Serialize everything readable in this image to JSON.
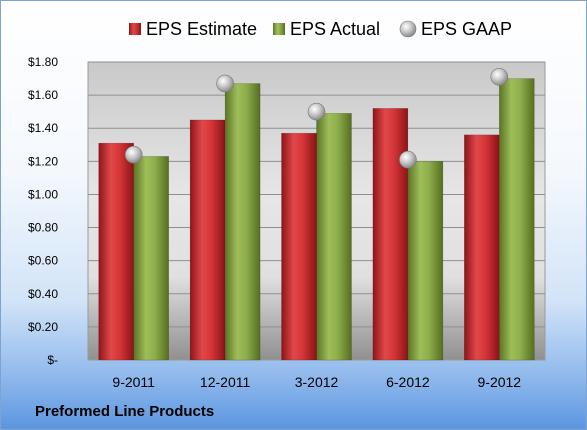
{
  "company": "Preformed Line Products",
  "chart_data": {
    "type": "bar",
    "categories": [
      "9-2011",
      "12-2011",
      "3-2012",
      "6-2012",
      "9-2012"
    ],
    "series": [
      {
        "name": "EPS Estimate",
        "type": "bar",
        "color": "#c0282c",
        "values": [
          1.31,
          1.45,
          1.37,
          1.52,
          1.36
        ]
      },
      {
        "name": "EPS Actual",
        "type": "bar",
        "color": "#7e9a3a",
        "values": [
          1.23,
          1.67,
          1.49,
          1.2,
          1.7
        ]
      },
      {
        "name": "EPS GAAP",
        "type": "scatter",
        "color": "#b8b8b8",
        "values": [
          1.24,
          1.67,
          1.5,
          1.21,
          1.71
        ]
      }
    ],
    "ylim": [
      0,
      1.8
    ],
    "yticks": [
      {
        "value": 0,
        "label": "$-"
      },
      {
        "value": 0.2,
        "label": "$0.20"
      },
      {
        "value": 0.4,
        "label": "$0.40"
      },
      {
        "value": 0.6,
        "label": "$0.60"
      },
      {
        "value": 0.8,
        "label": "$0.80"
      },
      {
        "value": 1.0,
        "label": "$1.00"
      },
      {
        "value": 1.2,
        "label": "$1.20"
      },
      {
        "value": 1.4,
        "label": "$1.40"
      },
      {
        "value": 1.6,
        "label": "$1.60"
      },
      {
        "value": 1.8,
        "label": "$1.80"
      }
    ],
    "grid": true,
    "legend": "top"
  }
}
